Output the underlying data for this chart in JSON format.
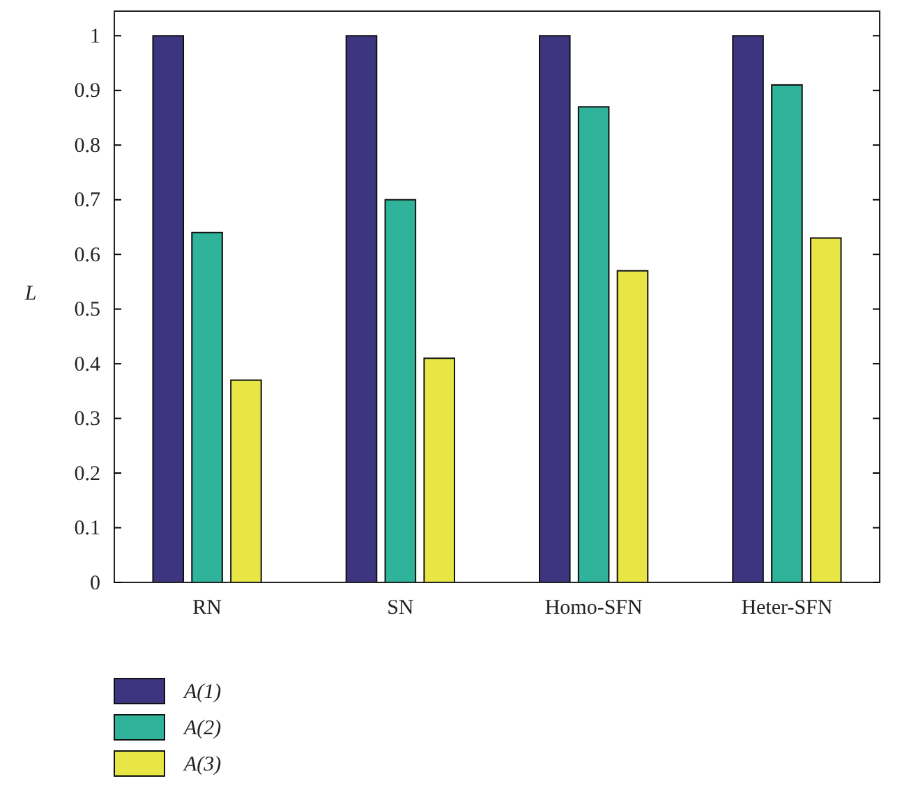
{
  "chart_data": {
    "type": "bar",
    "ylabel": "L",
    "categories": [
      "RN",
      "SN",
      "Homo-SFN",
      "Heter-SFN"
    ],
    "series": [
      {
        "name": "A(1)",
        "color": "#3d3580",
        "values": [
          1,
          1,
          1,
          1
        ]
      },
      {
        "name": "A(2)",
        "color": "#2fb39a",
        "values": [
          0.64,
          0.7,
          0.87,
          0.91
        ]
      },
      {
        "name": "A(3)",
        "color": "#e8e645",
        "values": [
          0.37,
          0.41,
          0.57,
          0.63
        ]
      }
    ],
    "ylim": [
      0,
      1.045
    ],
    "yticks": [
      0,
      0.1,
      0.2,
      0.3,
      0.4,
      0.5,
      0.6,
      0.7,
      0.8,
      0.9,
      1
    ],
    "grid": false,
    "legend": "bottom left"
  }
}
